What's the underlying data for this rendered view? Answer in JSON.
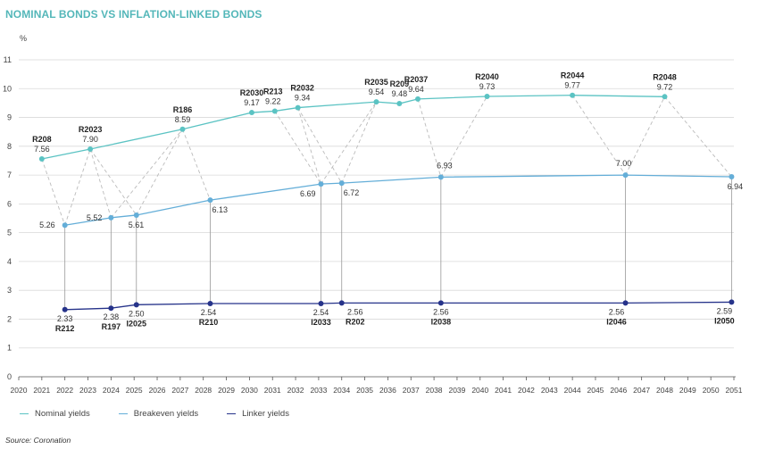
{
  "header": {
    "title": "NOMINAL BONDS VS INFLATION-LINKED BONDS"
  },
  "source_text": "Source: Coronation",
  "colors": {
    "nominal": "#5bc3c3",
    "breakeven": "#64aed8",
    "linker": "#26338a",
    "dashed": "#bbbbbb",
    "title": "#54b7b9"
  },
  "chart_data": {
    "type": "line",
    "title": "NOMINAL BONDS VS INFLATION-LINKED BONDS",
    "ylabel": "%",
    "xlabel": "",
    "xlim": [
      2020,
      2051
    ],
    "ylim": [
      0,
      11
    ],
    "x_ticks": [
      2020,
      2021,
      2022,
      2023,
      2024,
      2025,
      2026,
      2027,
      2028,
      2029,
      2030,
      2031,
      2032,
      2033,
      2034,
      2035,
      2036,
      2037,
      2038,
      2039,
      2040,
      2041,
      2042,
      2043,
      2044,
      2045,
      2046,
      2047,
      2048,
      2049,
      2050,
      2051
    ],
    "y_ticks": [
      0,
      1,
      2,
      3,
      4,
      5,
      6,
      7,
      8,
      9,
      10,
      11
    ],
    "grid": "horizontal",
    "legend_position": "bottom-left",
    "series": [
      {
        "name": "Nominal yields",
        "points": [
          {
            "x": 2021.0,
            "y": 7.56,
            "bond": "R208",
            "value_label": "7.56"
          },
          {
            "x": 2023.1,
            "y": 7.9,
            "bond": "R2023",
            "value_label": "7.90"
          },
          {
            "x": 2027.1,
            "y": 8.59,
            "bond": "R186",
            "value_label": "8.59"
          },
          {
            "x": 2030.1,
            "y": 9.17,
            "bond": "R2030",
            "value_label": "9.17"
          },
          {
            "x": 2031.1,
            "y": 9.22,
            "bond": "R213",
            "value_label": "9.22"
          },
          {
            "x": 2032.1,
            "y": 9.34,
            "bond": "R2032",
            "value_label": "9.34"
          },
          {
            "x": 2035.5,
            "y": 9.54,
            "bond": "R2035",
            "value_label": "9.54"
          },
          {
            "x": 2036.5,
            "y": 9.48,
            "bond": "R209",
            "value_label": "9.48"
          },
          {
            "x": 2037.3,
            "y": 9.64,
            "bond": "R2037",
            "value_label": "9.64"
          },
          {
            "x": 2040.3,
            "y": 9.73,
            "bond": "R2040",
            "value_label": "9.73"
          },
          {
            "x": 2044.0,
            "y": 9.77,
            "bond": "R2044",
            "value_label": "9.77"
          },
          {
            "x": 2048.0,
            "y": 9.72,
            "bond": "R2048",
            "value_label": "9.72"
          }
        ]
      },
      {
        "name": "Breakeven yields",
        "points": [
          {
            "x": 2022.0,
            "y": 5.26,
            "value_label": "5.26"
          },
          {
            "x": 2024.0,
            "y": 5.52,
            "value_label": "5.52"
          },
          {
            "x": 2025.1,
            "y": 5.61,
            "value_label": "5.61"
          },
          {
            "x": 2028.3,
            "y": 6.13,
            "value_label": "6.13"
          },
          {
            "x": 2033.1,
            "y": 6.69,
            "value_label": "6.69"
          },
          {
            "x": 2034.0,
            "y": 6.72,
            "value_label": "6.72"
          },
          {
            "x": 2038.3,
            "y": 6.93,
            "value_label": "6.93"
          },
          {
            "x": 2046.3,
            "y": 7.0,
            "value_label": "7.00"
          },
          {
            "x": 2050.9,
            "y": 6.94,
            "value_label": "6.94"
          }
        ]
      },
      {
        "name": "Linker yields",
        "points": [
          {
            "x": 2022.0,
            "y": 2.33,
            "bond": "R212",
            "value_label": "2.33"
          },
          {
            "x": 2024.0,
            "y": 2.38,
            "bond": "R197",
            "value_label": "2.38"
          },
          {
            "x": 2025.1,
            "y": 2.5,
            "bond": "I2025",
            "value_label": "2.50"
          },
          {
            "x": 2028.3,
            "y": 2.54,
            "bond": "R210",
            "value_label": "2.54"
          },
          {
            "x": 2033.1,
            "y": 2.54,
            "bond": "I2033",
            "value_label": "2.54"
          },
          {
            "x": 2034.0,
            "y": 2.56,
            "bond": "R202",
            "value_label": "2.56"
          },
          {
            "x": 2038.3,
            "y": 2.56,
            "bond": "I2038",
            "value_label": "2.56"
          },
          {
            "x": 2046.3,
            "y": 2.56,
            "bond": "I2046",
            "value_label": "2.56"
          },
          {
            "x": 2050.9,
            "y": 2.59,
            "bond": "I2050",
            "value_label": "2.59"
          }
        ]
      }
    ]
  }
}
